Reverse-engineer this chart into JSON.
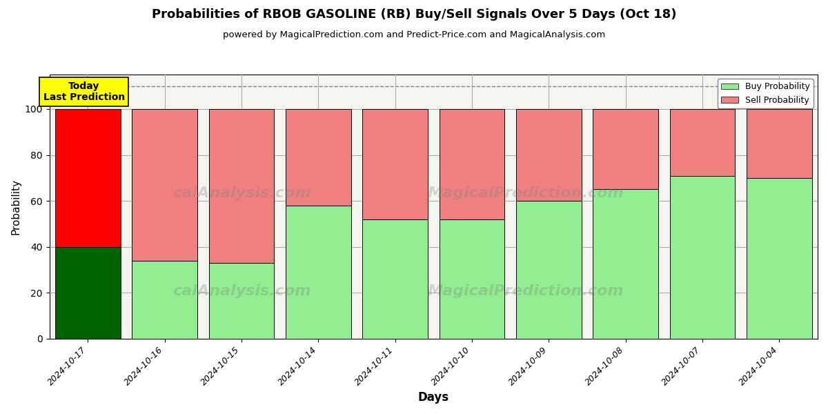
{
  "title": "Probabilities of RBOB GASOLINE (RB) Buy/Sell Signals Over 5 Days (Oct 18)",
  "subtitle": "powered by MagicalPrediction.com and Predict-Price.com and MagicalAnalysis.com",
  "xlabel": "Days",
  "ylabel": "Probability",
  "categories": [
    "2024-10-17",
    "2024-10-16",
    "2024-10-15",
    "2024-10-14",
    "2024-10-11",
    "2024-10-10",
    "2024-10-09",
    "2024-10-08",
    "2024-10-07",
    "2024-10-04"
  ],
  "buy_values": [
    40,
    34,
    33,
    58,
    52,
    52,
    60,
    65,
    71,
    70
  ],
  "sell_values": [
    60,
    66,
    67,
    42,
    48,
    48,
    40,
    35,
    29,
    30
  ],
  "today_buy_color": "#006400",
  "today_sell_color": "#FF0000",
  "buy_color": "#90EE90",
  "sell_color": "#F08080",
  "today_label_bg": "#FFFF00",
  "today_label_text": "Today\nLast Prediction",
  "dashed_line_y": 110,
  "ylim": [
    0,
    115
  ],
  "yticks": [
    0,
    20,
    40,
    60,
    80,
    100
  ],
  "legend_buy": "Buy Probability",
  "legend_sell": "Sell Probability",
  "bar_width": 0.85,
  "grid_color": "#aaaaaa",
  "bg_color": "#f5f5f0",
  "wm1_text": "calAnalysis.com",
  "wm2_text": "MagicalPrediction.com",
  "wm3_text": "calAnalysis.com",
  "wm4_text": "MagicalPrediction.com"
}
